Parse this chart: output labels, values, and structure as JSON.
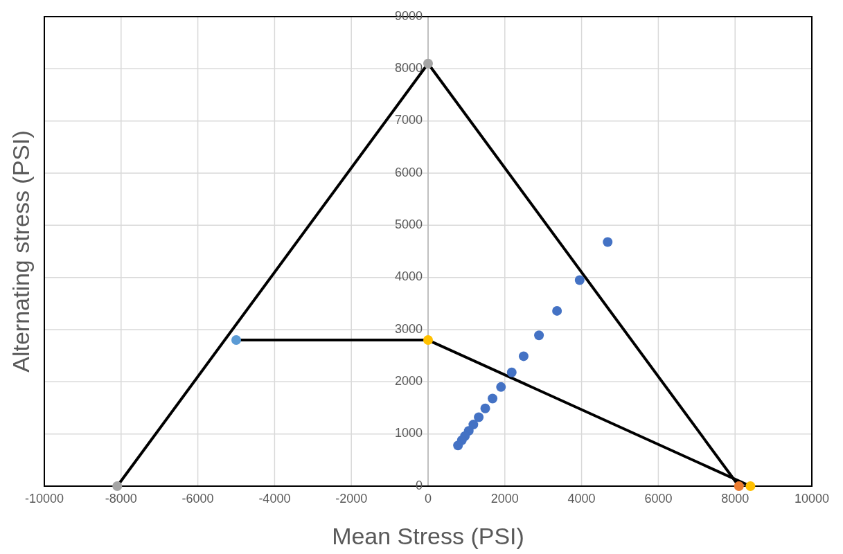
{
  "chart_data": {
    "type": "scatter",
    "xlabel": "Mean Stress (PSI)",
    "ylabel": "Alternating stress (PSI)",
    "xlim": [
      -10000,
      10000
    ],
    "xticks": [
      -10000,
      -8000,
      -6000,
      -4000,
      -2000,
      0,
      2000,
      4000,
      6000,
      8000,
      10000
    ],
    "ylim": [
      0,
      9000
    ],
    "yticks": [
      0,
      1000,
      2000,
      3000,
      4000,
      5000,
      6000,
      7000,
      8000,
      9000
    ],
    "grid": true,
    "series": [
      {
        "type": "line",
        "color": "#000000",
        "marker": "none",
        "x": [
          -8100,
          0,
          8100
        ],
        "values": [
          0,
          8100,
          0
        ]
      },
      {
        "type": "line",
        "color": "#000000",
        "marker": "none",
        "x": [
          -5000,
          0,
          8400
        ],
        "values": [
          2800,
          2800,
          0
        ]
      },
      {
        "color": "#4472c4",
        "marker": "circle",
        "x": [
          4680,
          3950,
          3360,
          2890,
          2490,
          2180,
          1900,
          1680,
          1490,
          1320,
          1180,
          1060,
          960,
          880,
          780
        ],
        "values": [
          4680,
          3950,
          3360,
          2890,
          2490,
          2180,
          1900,
          1680,
          1490,
          1320,
          1180,
          1060,
          960,
          880,
          780
        ]
      },
      {
        "color": "#a5a5a5",
        "marker": "circle",
        "x": [
          -8100,
          0
        ],
        "values": [
          0,
          8100
        ]
      },
      {
        "color": "#ed7d31",
        "marker": "circle",
        "x": [
          8100
        ],
        "values": [
          0
        ]
      },
      {
        "color": "#ffc000",
        "marker": "circle",
        "x": [
          0,
          8400
        ],
        "values": [
          2800,
          0
        ]
      },
      {
        "color": "#5b9bd5",
        "marker": "circle",
        "x": [
          -5000
        ],
        "values": [
          2800
        ]
      }
    ]
  }
}
